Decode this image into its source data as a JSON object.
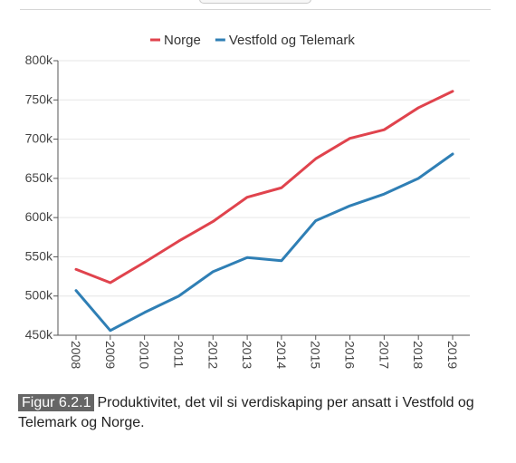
{
  "caption": {
    "figure_label": "Figur 6.2.1",
    "text": "Produktivitet, det vil si verdiskaping per ansatt i Vestfold og Telemark og Norge."
  },
  "colors": {
    "norge": "#e0434d",
    "vestfold": "#2f7fb5",
    "grid": "#e6e6e6",
    "axis": "#555555"
  },
  "chart_data": {
    "type": "line",
    "title": "",
    "xlabel": "",
    "ylabel": "",
    "x": [
      2008,
      2009,
      2010,
      2011,
      2012,
      2013,
      2014,
      2015,
      2016,
      2017,
      2018,
      2019
    ],
    "x_tick_labels": [
      "2008",
      "2009",
      "2010",
      "2011",
      "2012",
      "2013",
      "2014",
      "2015",
      "2016",
      "2017",
      "2018",
      "2019"
    ],
    "ylim": [
      450000,
      800000
    ],
    "y_ticks": [
      450000,
      500000,
      550000,
      600000,
      650000,
      700000,
      750000,
      800000
    ],
    "y_tick_labels": [
      "450k",
      "500k",
      "550k",
      "600k",
      "650k",
      "700k",
      "750k",
      "800k"
    ],
    "grid": true,
    "legend_position": "top-center",
    "series": [
      {
        "name": "Norge",
        "color": "#e0434d",
        "values": [
          534000,
          517000,
          543000,
          570000,
          595000,
          626000,
          638000,
          675000,
          701000,
          712000,
          740000,
          761000
        ]
      },
      {
        "name": "Vestfold og Telemark",
        "color": "#2f7fb5",
        "values": [
          507000,
          456000,
          479000,
          500000,
          531000,
          549000,
          545000,
          596000,
          615000,
          630000,
          650000,
          681000
        ]
      }
    ]
  }
}
